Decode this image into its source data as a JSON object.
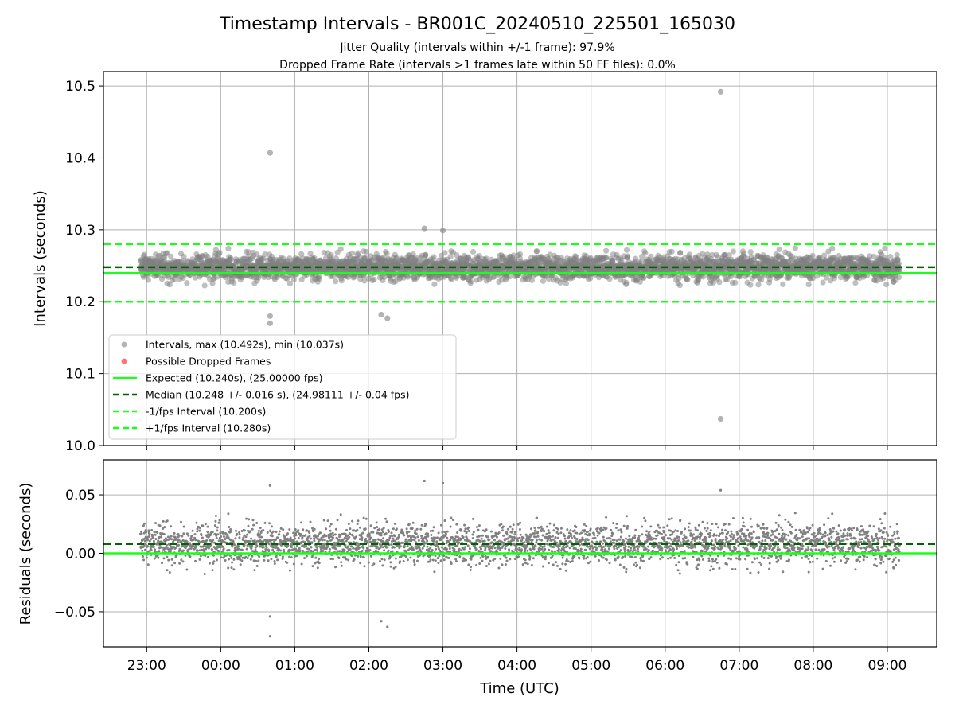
{
  "title": "Timestamp Intervals - BR001C_20240510_225501_165030",
  "subtitle_line1": "Jitter Quality (intervals within +/-1 frame): 97.9%",
  "subtitle_line2": "Dropped Frame Rate (intervals >1 frames late within 50 FF files): 0.0%",
  "colors": {
    "points": "#808080",
    "dropped": "#ff0000",
    "expected": "#1aff1a",
    "median": "#006400",
    "interval": "#1aff1a",
    "grid": "#b0b0b0"
  },
  "chart_data": [
    {
      "type": "scatter",
      "ylabel": "Intervals (seconds)",
      "ylim": [
        10.0,
        10.52
      ],
      "yticks": [
        "10.0",
        "10.1",
        "10.2",
        "10.3",
        "10.4",
        "10.5"
      ],
      "grid": true,
      "legend_position": "lower-left",
      "legend": [
        {
          "label": "Intervals, max (10.492s), min (10.037s)",
          "style": "marker-gray"
        },
        {
          "label": "Possible Dropped Frames",
          "style": "marker-red"
        },
        {
          "label": "Expected (10.240s), (25.00000 fps)",
          "style": "line-solid-green"
        },
        {
          "label": "Median (10.248 +/- 0.016 s), (24.98111 +/- 0.04 fps)",
          "style": "line-dashed-darkgreen"
        },
        {
          "label": "-1/fps Interval (10.200s)",
          "style": "line-dashed-green"
        },
        {
          "label": "+1/fps Interval (10.280s)",
          "style": "line-dashed-green"
        }
      ],
      "reference_lines": {
        "expected": 10.24,
        "median": 10.248,
        "minus_one_frame": 10.2,
        "plus_one_frame": 10.28
      },
      "typical_range": [
        10.2,
        10.29
      ],
      "outliers": [
        {
          "x": "00:40",
          "y": 10.407
        },
        {
          "x": "06:45",
          "y": 10.492
        },
        {
          "x": "06:45",
          "y": 10.037
        },
        {
          "x": "00:40",
          "y": 10.17
        },
        {
          "x": "00:40",
          "y": 10.18
        },
        {
          "x": "02:10",
          "y": 10.182
        },
        {
          "x": "02:15",
          "y": 10.177
        },
        {
          "x": "02:45",
          "y": 10.302
        },
        {
          "x": "03:00",
          "y": 10.299
        }
      ]
    },
    {
      "type": "scatter",
      "xlabel": "Time (UTC)",
      "ylabel": "Residuals (seconds)",
      "ylim": [
        -0.08,
        0.08
      ],
      "yticks": [
        "−0.05",
        "0.00",
        "0.05"
      ],
      "xticks": [
        "23:00",
        "00:00",
        "01:00",
        "02:00",
        "03:00",
        "04:00",
        "05:00",
        "06:00",
        "07:00",
        "08:00",
        "09:00"
      ],
      "x_range": [
        "22:25",
        "09:40"
      ],
      "grid": true,
      "reference_lines": {
        "expected_residual": 0.0,
        "median_residual": 0.008
      },
      "typical_range": [
        -0.04,
        0.05
      ],
      "outliers": [
        {
          "x": "00:40",
          "y": 0.058
        },
        {
          "x": "00:40",
          "y": -0.071
        },
        {
          "x": "00:40",
          "y": -0.054
        },
        {
          "x": "02:10",
          "y": -0.058
        },
        {
          "x": "02:15",
          "y": -0.063
        },
        {
          "x": "02:45",
          "y": 0.062
        },
        {
          "x": "03:00",
          "y": 0.06
        },
        {
          "x": "06:45",
          "y": 0.054
        }
      ]
    }
  ]
}
